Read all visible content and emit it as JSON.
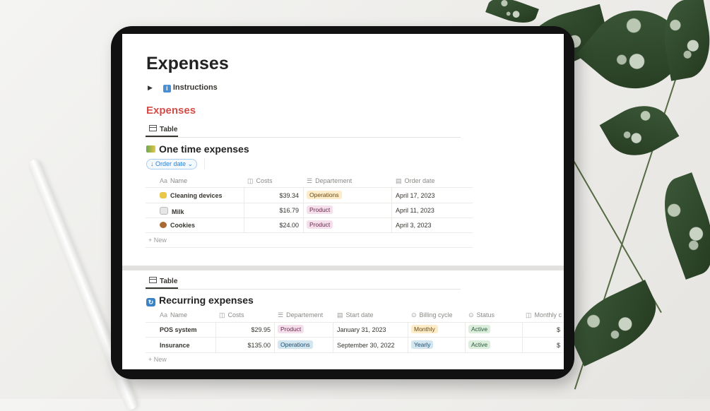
{
  "page": {
    "title": "Expenses",
    "instructions_label": "Instructions",
    "section_heading": "Expenses"
  },
  "one_time": {
    "tab_label": "Table",
    "title": "One time expenses",
    "sort_label": "↓ Order date ⌄",
    "columns": [
      "Name",
      "Costs",
      "Departement",
      "Order date"
    ],
    "rows": [
      {
        "name": "Cleaning devices",
        "cost": "$39.34",
        "department": "Operations",
        "date": "April 17, 2023"
      },
      {
        "name": "Milk",
        "cost": "$16.79",
        "department": "Product",
        "date": "April 11, 2023"
      },
      {
        "name": "Cookies",
        "cost": "$24.00",
        "department": "Product",
        "date": "April 3, 2023"
      }
    ],
    "new_label": "New"
  },
  "recurring": {
    "tab_label": "Table",
    "title": "Recurring expenses",
    "columns": [
      "Name",
      "Costs",
      "Departement",
      "Start date",
      "Billing cycle",
      "Status",
      "Monthly c"
    ],
    "rows": [
      {
        "name": "POS system",
        "cost": "$29.95",
        "department": "Product",
        "start": "January 31, 2023",
        "cycle": "Monthly",
        "status": "Active",
        "monthly": "$"
      },
      {
        "name": "Insurance",
        "cost": "$135.00",
        "department": "Operations",
        "start": "September 30, 2022",
        "cycle": "Yearly",
        "status": "Active",
        "monthly": "$"
      }
    ],
    "new_label": "New"
  },
  "colors": {
    "heading_red": "#d44c47",
    "link_blue": "#2383e2",
    "tag_operations": "#fdecc8",
    "tag_product": "#f4dfeb",
    "tag_operations_alt": "#d3e5ef",
    "tag_active": "#dbeddb"
  },
  "icons": {
    "collapse_toggle": "triangle-right-icon",
    "instructions": "info-icon",
    "table_view": "table-icon",
    "one_time_section": "money-icon",
    "recurring_section": "repeat-icon"
  }
}
